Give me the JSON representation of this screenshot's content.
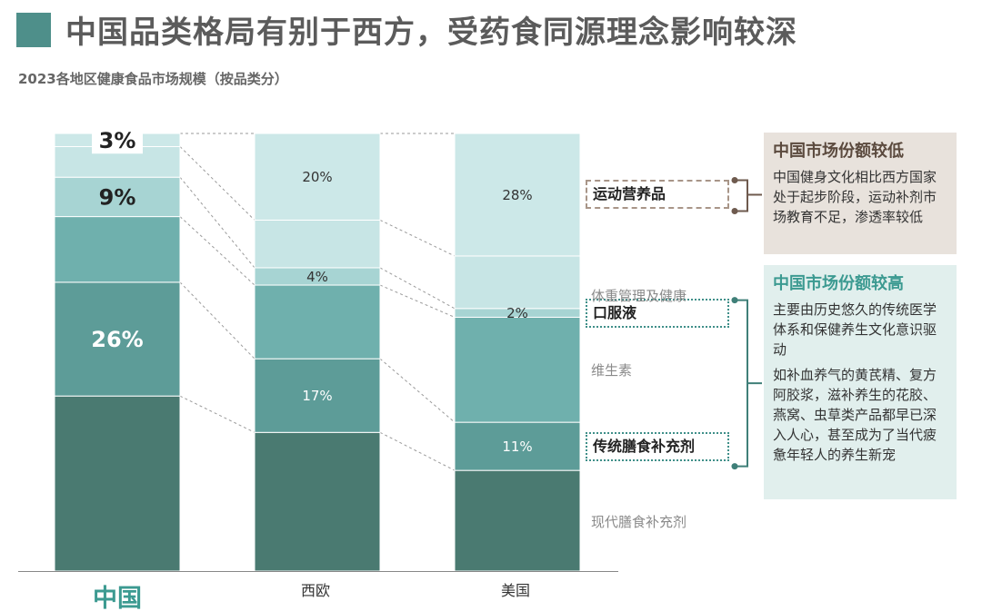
{
  "header": {
    "title": "中国品类格局有别于西方，受药食同源理念影响较深",
    "subtitle": "2023各地区健康食品市场规模（按品类分）"
  },
  "colors": {
    "title_block": "#4e8f8a",
    "segments": [
      "#4a7a71",
      "#5d9c98",
      "#6fb0ad",
      "#a7d4d3",
      "#c7e5e5",
      "#cce8e8"
    ],
    "accent_teal": "#3c9a91",
    "accent_brown": "#5b4a3e"
  },
  "chart_data": {
    "type": "bar",
    "stacked": true,
    "normalized": true,
    "categories": [
      "中国",
      "西欧",
      "美国"
    ],
    "series": [
      {
        "name": "现代膳食补充剂",
        "values": [
          40,
          32,
          23
        ]
      },
      {
        "name": "传统膳食补充剂",
        "values": [
          26,
          17,
          11
        ]
      },
      {
        "name": "维生素",
        "values": [
          15,
          17,
          24
        ]
      },
      {
        "name": "口服液",
        "values": [
          9,
          4,
          2
        ]
      },
      {
        "name": "体重管理及健康",
        "values": [
          7,
          11,
          12
        ]
      },
      {
        "name": "运动营养品",
        "values": [
          3,
          20,
          28
        ]
      }
    ],
    "data_labels": [
      {
        "category": "中国",
        "series": "运动营养品",
        "text": "3%"
      },
      {
        "category": "中国",
        "series": "口服液",
        "text": "9%"
      },
      {
        "category": "中国",
        "series": "传统膳食补充剂",
        "text": "26%"
      },
      {
        "category": "西欧",
        "series": "运动营养品",
        "text": "20%"
      },
      {
        "category": "西欧",
        "series": "口服液",
        "text": "4%"
      },
      {
        "category": "西欧",
        "series": "传统膳食补充剂",
        "text": "17%"
      },
      {
        "category": "美国",
        "series": "运动营养品",
        "text": "28%"
      },
      {
        "category": "美国",
        "series": "口服液",
        "text": "2%"
      },
      {
        "category": "美国",
        "series": "传统膳食补充剂",
        "text": "11%"
      }
    ],
    "ylim": [
      0,
      100
    ],
    "legend": "right"
  },
  "annotations": {
    "low_share": {
      "title": "中国市场份额较低",
      "text": "中国健身文化相比西方国家处于起步阶段，运动补剂市场教育不足，渗透率较低"
    },
    "high_share": {
      "title": "中国市场份额较高",
      "text1": "主要由历史悠久的传统医学体系和保健养生文化意识驱动",
      "text2": "如补血养气的黄芪精、复方阿胶浆，滋补养生的花胶、燕窝、虫草类产品都早已深入人心，甚至成为了当代疲惫年轻人的养生新宠"
    }
  }
}
